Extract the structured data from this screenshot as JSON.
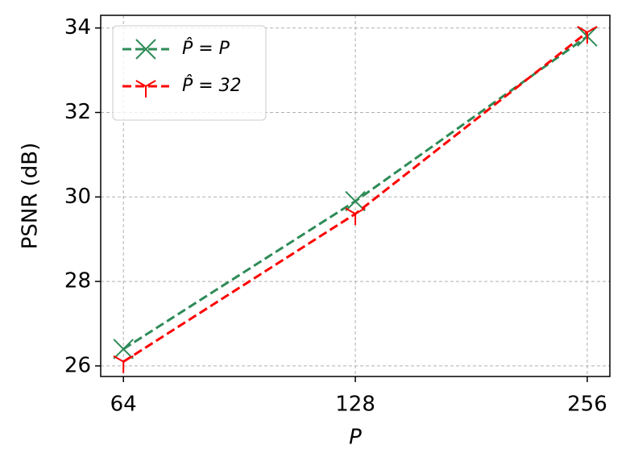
{
  "chart_data": {
    "type": "line",
    "xlabel": "P",
    "ylabel": "PSNR (dB)",
    "x": [
      64,
      128,
      256
    ],
    "xscale": "log",
    "xlim": [
      59.8,
      273.9
    ],
    "xticks": [
      64,
      128,
      256
    ],
    "ylim": [
      25.75,
      34.3
    ],
    "yticks": [
      26,
      28,
      30,
      32,
      34
    ],
    "grid": true,
    "legend": "upper left",
    "series": [
      {
        "name": "P̂ = P",
        "color": "#2e8b57",
        "marker": "x",
        "values": [
          26.4,
          29.9,
          33.8
        ]
      },
      {
        "name": "P̂ = 32",
        "color": "#ff0000",
        "marker": "tri_down",
        "values": [
          26.1,
          29.6,
          33.9
        ]
      }
    ]
  }
}
